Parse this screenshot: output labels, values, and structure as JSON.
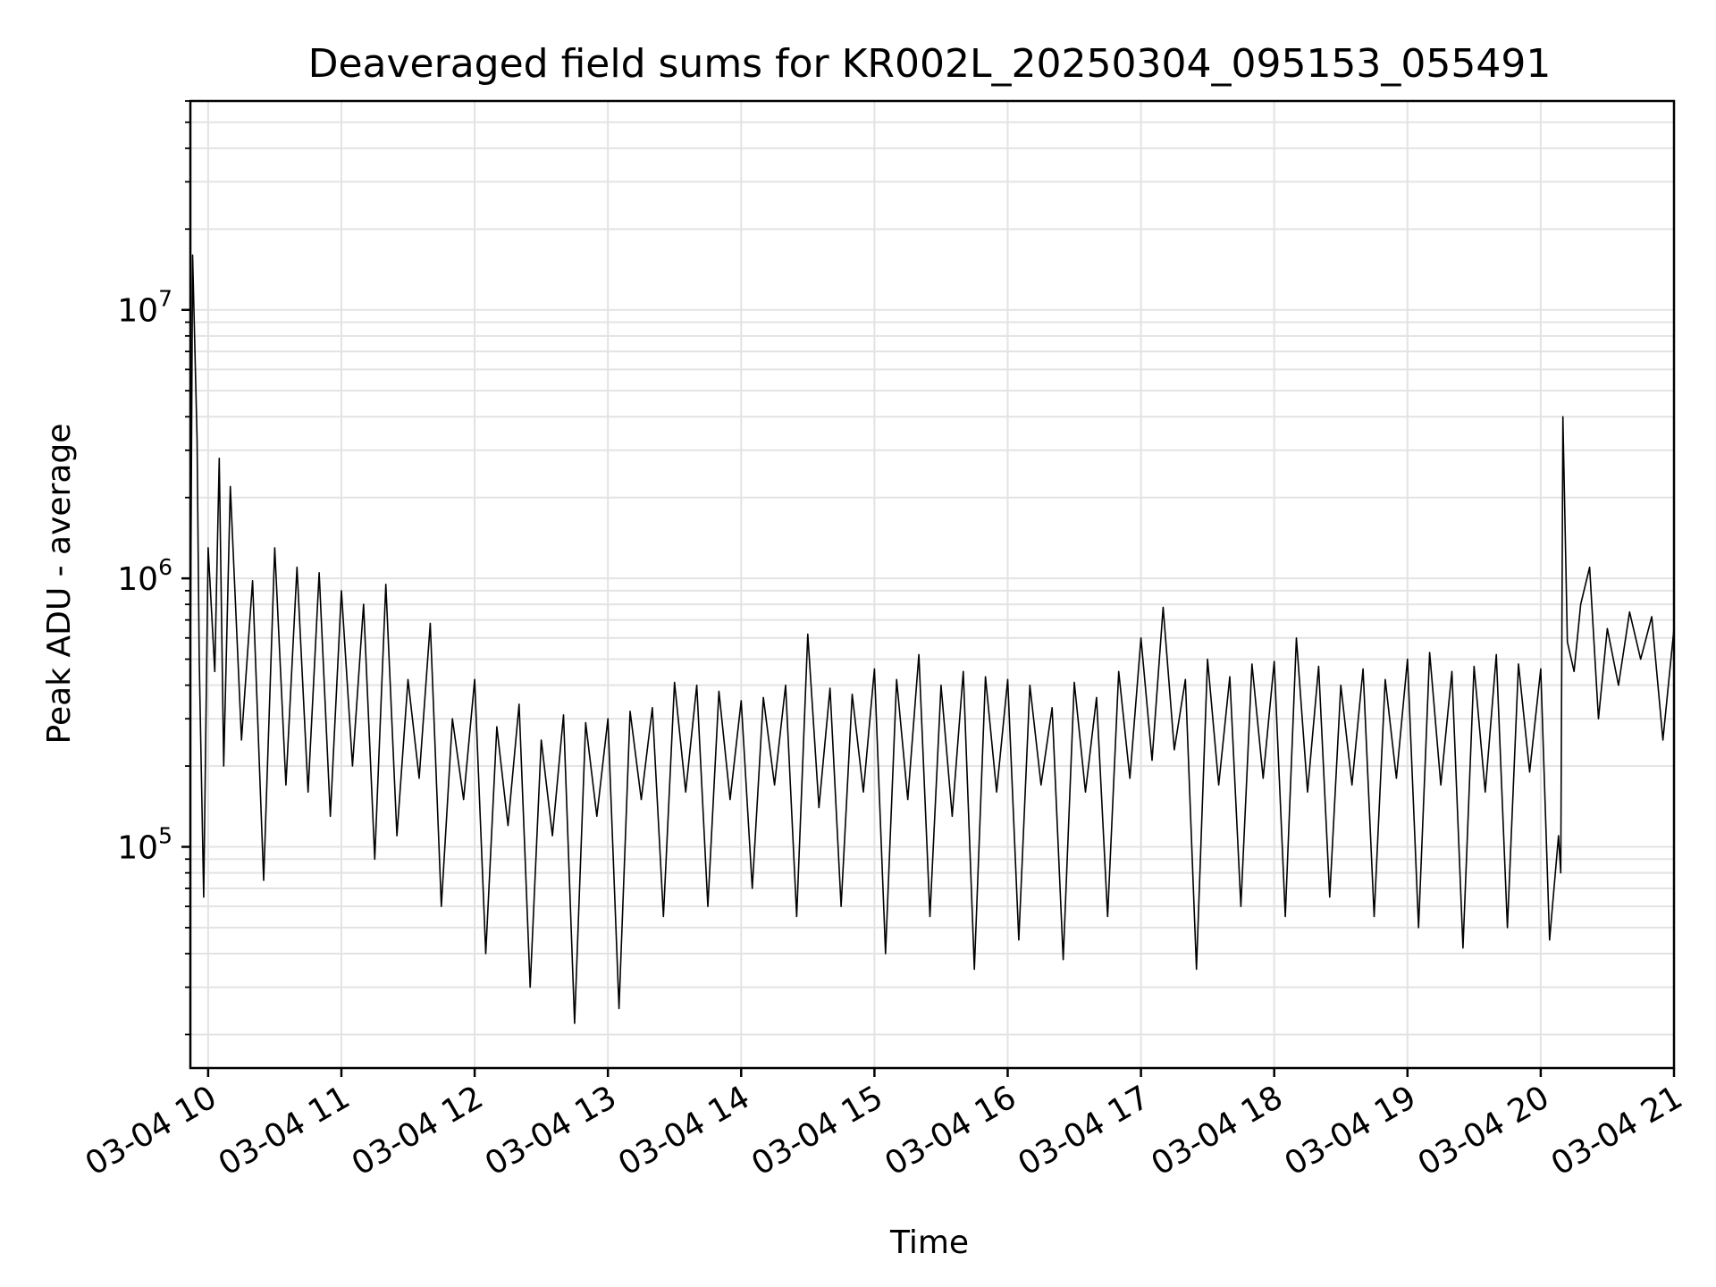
{
  "chart_data": {
    "type": "line",
    "title": "Deaveraged field sums for KR002L_20250304_095153_055491",
    "xlabel": "Time",
    "ylabel": "Peak ADU - average",
    "yscale": "log",
    "grid": true,
    "ylim": [
      15000,
      60000000
    ],
    "xlim": [
      "2025-03-04 09:52",
      "2025-03-04 21:00"
    ],
    "x_ticks": [
      {
        "value": "2025-03-04 10:00",
        "label": "03-04 10"
      },
      {
        "value": "2025-03-04 11:00",
        "label": "03-04 11"
      },
      {
        "value": "2025-03-04 12:00",
        "label": "03-04 12"
      },
      {
        "value": "2025-03-04 13:00",
        "label": "03-04 13"
      },
      {
        "value": "2025-03-04 14:00",
        "label": "03-04 14"
      },
      {
        "value": "2025-03-04 15:00",
        "label": "03-04 15"
      },
      {
        "value": "2025-03-04 16:00",
        "label": "03-04 16"
      },
      {
        "value": "2025-03-04 17:00",
        "label": "03-04 17"
      },
      {
        "value": "2025-03-04 18:00",
        "label": "03-04 18"
      },
      {
        "value": "2025-03-04 19:00",
        "label": "03-04 19"
      },
      {
        "value": "2025-03-04 20:00",
        "label": "03-04 20"
      },
      {
        "value": "2025-03-04 21:00",
        "label": "03-04 21"
      }
    ],
    "y_ticks": [
      {
        "value": 100000,
        "base": "10",
        "exp": "5"
      },
      {
        "value": 1000000,
        "base": "10",
        "exp": "6"
      },
      {
        "value": 10000000,
        "base": "10",
        "exp": "7"
      }
    ],
    "series": [
      {
        "color": "#000000",
        "x": [
          "2025-03-04 09:52",
          "2025-03-04 09:53",
          "2025-03-04 09:55",
          "2025-03-04 09:56",
          "2025-03-04 09:58",
          "2025-03-04 10:00",
          "2025-03-04 10:03",
          "2025-03-04 10:05",
          "2025-03-04 10:07",
          "2025-03-04 10:10",
          "2025-03-04 10:15",
          "2025-03-04 10:20",
          "2025-03-04 10:25",
          "2025-03-04 10:30",
          "2025-03-04 10:35",
          "2025-03-04 10:40",
          "2025-03-04 10:45",
          "2025-03-04 10:50",
          "2025-03-04 10:55",
          "2025-03-04 11:00",
          "2025-03-04 11:05",
          "2025-03-04 11:10",
          "2025-03-04 11:15",
          "2025-03-04 11:20",
          "2025-03-04 11:25",
          "2025-03-04 11:30",
          "2025-03-04 11:35",
          "2025-03-04 11:40",
          "2025-03-04 11:45",
          "2025-03-04 11:50",
          "2025-03-04 11:55",
          "2025-03-04 12:00",
          "2025-03-04 12:05",
          "2025-03-04 12:10",
          "2025-03-04 12:15",
          "2025-03-04 12:20",
          "2025-03-04 12:25",
          "2025-03-04 12:30",
          "2025-03-04 12:35",
          "2025-03-04 12:40",
          "2025-03-04 12:45",
          "2025-03-04 12:50",
          "2025-03-04 12:55",
          "2025-03-04 13:00",
          "2025-03-04 13:05",
          "2025-03-04 13:10",
          "2025-03-04 13:15",
          "2025-03-04 13:20",
          "2025-03-04 13:25",
          "2025-03-04 13:30",
          "2025-03-04 13:35",
          "2025-03-04 13:40",
          "2025-03-04 13:45",
          "2025-03-04 13:50",
          "2025-03-04 13:55",
          "2025-03-04 14:00",
          "2025-03-04 14:05",
          "2025-03-04 14:10",
          "2025-03-04 14:15",
          "2025-03-04 14:20",
          "2025-03-04 14:25",
          "2025-03-04 14:30",
          "2025-03-04 14:35",
          "2025-03-04 14:40",
          "2025-03-04 14:45",
          "2025-03-04 14:50",
          "2025-03-04 14:55",
          "2025-03-04 15:00",
          "2025-03-04 15:05",
          "2025-03-04 15:10",
          "2025-03-04 15:15",
          "2025-03-04 15:20",
          "2025-03-04 15:25",
          "2025-03-04 15:30",
          "2025-03-04 15:35",
          "2025-03-04 15:40",
          "2025-03-04 15:45",
          "2025-03-04 15:50",
          "2025-03-04 15:55",
          "2025-03-04 16:00",
          "2025-03-04 16:05",
          "2025-03-04 16:10",
          "2025-03-04 16:15",
          "2025-03-04 16:20",
          "2025-03-04 16:25",
          "2025-03-04 16:30",
          "2025-03-04 16:35",
          "2025-03-04 16:40",
          "2025-03-04 16:45",
          "2025-03-04 16:50",
          "2025-03-04 16:55",
          "2025-03-04 17:00",
          "2025-03-04 17:05",
          "2025-03-04 17:10",
          "2025-03-04 17:15",
          "2025-03-04 17:20",
          "2025-03-04 17:25",
          "2025-03-04 17:30",
          "2025-03-04 17:35",
          "2025-03-04 17:40",
          "2025-03-04 17:45",
          "2025-03-04 17:50",
          "2025-03-04 17:55",
          "2025-03-04 18:00",
          "2025-03-04 18:05",
          "2025-03-04 18:10",
          "2025-03-04 18:15",
          "2025-03-04 18:20",
          "2025-03-04 18:25",
          "2025-03-04 18:30",
          "2025-03-04 18:35",
          "2025-03-04 18:40",
          "2025-03-04 18:45",
          "2025-03-04 18:50",
          "2025-03-04 18:55",
          "2025-03-04 19:00",
          "2025-03-04 19:05",
          "2025-03-04 19:10",
          "2025-03-04 19:15",
          "2025-03-04 19:20",
          "2025-03-04 19:25",
          "2025-03-04 19:30",
          "2025-03-04 19:35",
          "2025-03-04 19:40",
          "2025-03-04 19:45",
          "2025-03-04 19:50",
          "2025-03-04 19:55",
          "2025-03-04 20:00",
          "2025-03-04 20:04",
          "2025-03-04 20:08",
          "2025-03-04 20:09",
          "2025-03-04 20:10",
          "2025-03-04 20:12",
          "2025-03-04 20:15",
          "2025-03-04 20:18",
          "2025-03-04 20:22",
          "2025-03-04 20:26",
          "2025-03-04 20:30",
          "2025-03-04 20:35",
          "2025-03-04 20:40",
          "2025-03-04 20:45",
          "2025-03-04 20:50",
          "2025-03-04 20:55",
          "2025-03-04 21:00"
        ],
        "y": [
          500000,
          16000000,
          3300000,
          500000,
          65000,
          1300000,
          450000,
          2800000,
          200000,
          2200000,
          250000,
          980000,
          75000,
          1300000,
          170000,
          1100000,
          160000,
          1050000,
          130000,
          900000,
          200000,
          800000,
          90000,
          950000,
          110000,
          420000,
          180000,
          680000,
          60000,
          300000,
          150000,
          420000,
          40000,
          280000,
          120000,
          340000,
          30000,
          250000,
          110000,
          310000,
          22000,
          290000,
          130000,
          300000,
          25000,
          320000,
          150000,
          330000,
          55000,
          410000,
          160000,
          400000,
          60000,
          380000,
          150000,
          350000,
          70000,
          360000,
          170000,
          400000,
          55000,
          620000,
          140000,
          390000,
          60000,
          370000,
          160000,
          460000,
          40000,
          420000,
          150000,
          520000,
          55000,
          400000,
          130000,
          450000,
          35000,
          430000,
          160000,
          420000,
          45000,
          400000,
          170000,
          330000,
          38000,
          410000,
          160000,
          360000,
          55000,
          450000,
          180000,
          600000,
          210000,
          780000,
          230000,
          420000,
          35000,
          500000,
          170000,
          430000,
          60000,
          480000,
          180000,
          490000,
          55000,
          600000,
          160000,
          470000,
          65000,
          400000,
          170000,
          460000,
          55000,
          420000,
          180000,
          500000,
          50000,
          530000,
          170000,
          450000,
          42000,
          470000,
          160000,
          520000,
          50000,
          480000,
          190000,
          460000,
          45000,
          110000,
          80000,
          4000000,
          580000,
          450000,
          800000,
          1100000,
          300000,
          650000,
          400000,
          750000,
          500000,
          720000,
          250000,
          650000
        ]
      }
    ]
  }
}
